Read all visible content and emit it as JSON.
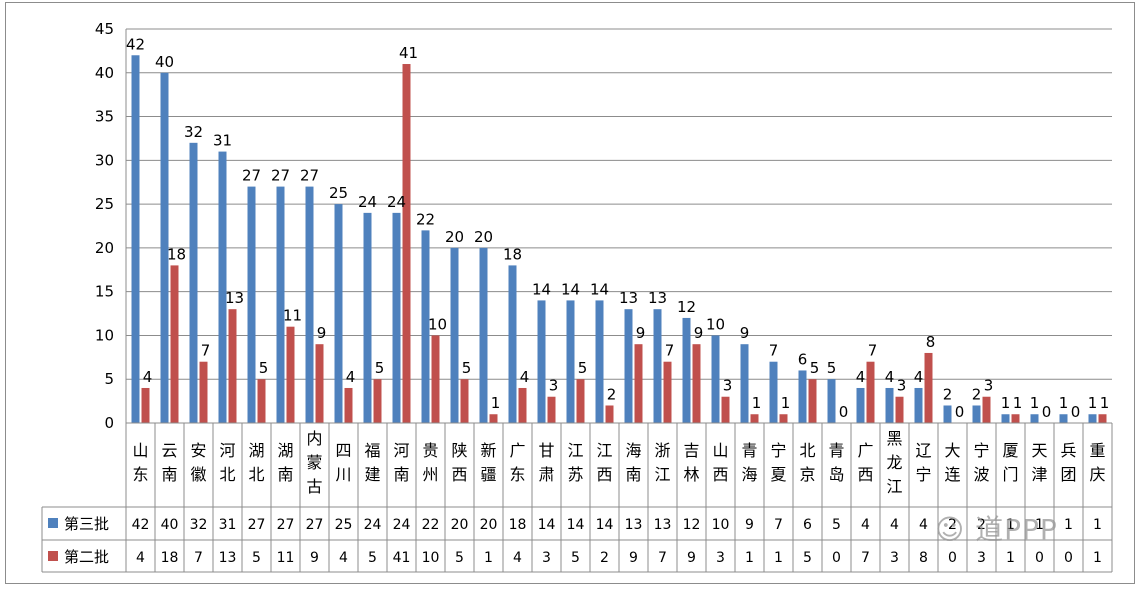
{
  "chart_data": {
    "type": "bar",
    "title": "",
    "xlabel": "",
    "ylabel": "",
    "ylim": [
      0,
      45
    ],
    "yticks": [
      0,
      5,
      10,
      15,
      20,
      25,
      30,
      35,
      40,
      45
    ],
    "grid": true,
    "legend_placement": "data-table-left",
    "categories": [
      "山东",
      "云南",
      "安徽",
      "河北",
      "湖北",
      "湖南",
      "内蒙古",
      "四川",
      "福建",
      "河南",
      "贵州",
      "陕西",
      "新疆",
      "广东",
      "甘肃",
      "江苏",
      "江西",
      "海南",
      "浙江",
      "吉林",
      "山西",
      "青海",
      "宁夏",
      "北京",
      "青岛",
      "广西",
      "黑龙江",
      "辽宁",
      "大连",
      "宁波",
      "厦门",
      "天津",
      "兵团",
      "重庆"
    ],
    "series": [
      {
        "name": "第三批",
        "color": "#4f81bd",
        "values": [
          42,
          40,
          32,
          31,
          27,
          27,
          27,
          25,
          24,
          24,
          22,
          20,
          20,
          18,
          14,
          14,
          14,
          13,
          13,
          12,
          10,
          9,
          7,
          6,
          5,
          4,
          4,
          4,
          2,
          2,
          1,
          1,
          1,
          1
        ]
      },
      {
        "name": "第二批",
        "color": "#c0504d",
        "values": [
          4,
          18,
          7,
          13,
          5,
          11,
          9,
          4,
          5,
          41,
          10,
          5,
          1,
          4,
          3,
          5,
          2,
          9,
          7,
          9,
          3,
          1,
          1,
          5,
          0,
          7,
          3,
          8,
          0,
          3,
          1,
          0,
          0,
          1
        ]
      }
    ]
  },
  "watermark": {
    "text": "道PPP",
    "icon": "wechat-icon"
  }
}
